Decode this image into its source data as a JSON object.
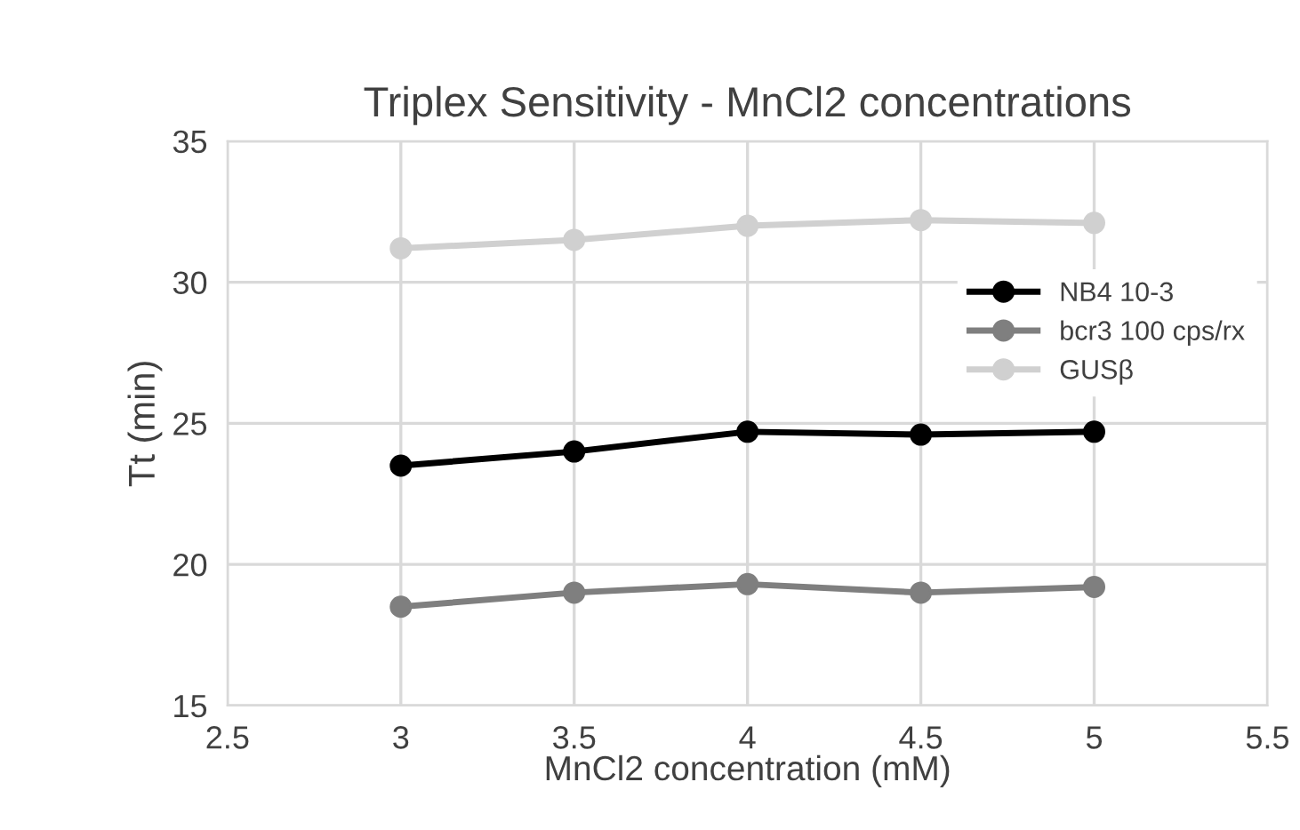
{
  "chart_data": {
    "type": "line",
    "title": "Triplex Sensitivity - MnCl2 concentrations",
    "xlabel": "MnCl2 concentration (mM)",
    "ylabel": "Tt (min)",
    "x": [
      3,
      3.5,
      4,
      4.5,
      5
    ],
    "series": [
      {
        "name": "NB4 10-3",
        "color": "#000000",
        "values": [
          23.5,
          24.0,
          24.7,
          24.6,
          24.7
        ]
      },
      {
        "name": "bcr3 100 cps/rx",
        "color": "#7f7f7f",
        "values": [
          18.5,
          19.0,
          19.3,
          19.0,
          19.2
        ]
      },
      {
        "name": "GUSβ",
        "color": "#d0d0d0",
        "values": [
          31.2,
          31.5,
          32.0,
          32.2,
          32.1
        ]
      }
    ],
    "xlim": [
      2.5,
      5.5
    ],
    "xticks": [
      2.5,
      3,
      3.5,
      4,
      4.5,
      5,
      5.5
    ],
    "ylim": [
      15,
      35
    ],
    "yticks": [
      15,
      20,
      25,
      30,
      35
    ],
    "grid": true,
    "legend": "right",
    "marker": "circle",
    "line_style": "solid"
  }
}
